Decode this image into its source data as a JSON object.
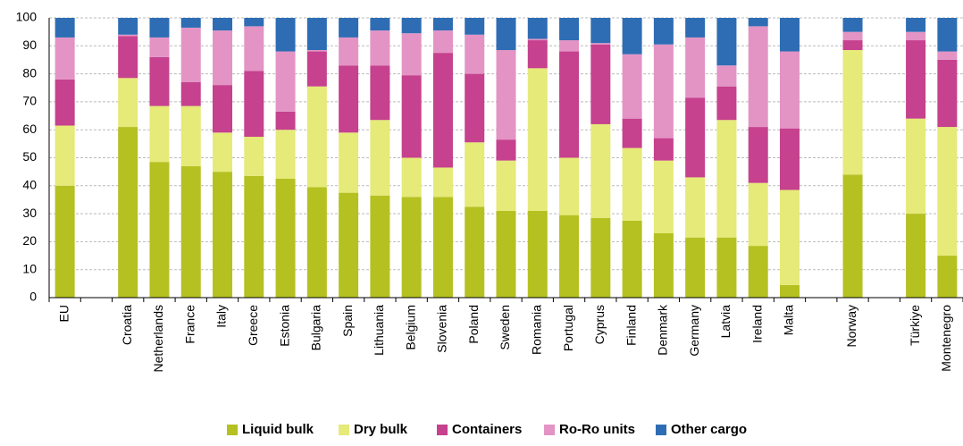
{
  "chart_data": {
    "type": "stacked_bar",
    "categories": [
      "EU",
      null,
      "Croatia",
      "Netherlands",
      "France",
      "Italy",
      "Greece",
      "Estonia",
      "Bulgaria",
      "Spain",
      "Lithuania",
      "Belgium",
      "Slovenia",
      "Poland",
      "Sweden",
      "Romania",
      "Portugal",
      "Cyprus",
      "Finland",
      "Denmark",
      "Germany",
      "Latvia",
      "Ireland",
      "Malta",
      null,
      "Norway",
      null,
      "Türkiye",
      "Montenegro"
    ],
    "series": [
      {
        "name": "Liquid bulk",
        "color": "#b5c121",
        "values": [
          40,
          null,
          61,
          48.5,
          47,
          45,
          43.5,
          42.5,
          39.5,
          37.5,
          36.5,
          36,
          36,
          32.5,
          31,
          31,
          29.5,
          28.5,
          27.5,
          23,
          21.5,
          21.5,
          18.5,
          4.5,
          null,
          44,
          null,
          30,
          15
        ]
      },
      {
        "name": "Dry bulk",
        "color": "#e5ea78",
        "values": [
          21.5,
          null,
          17.5,
          20,
          21.5,
          14,
          14,
          17.5,
          36,
          21.5,
          27,
          14,
          10.5,
          23,
          18,
          51,
          20.5,
          33.5,
          26,
          26,
          21.5,
          42,
          22.5,
          34,
          null,
          44.5,
          null,
          34,
          46
        ]
      },
      {
        "name": "Containers",
        "color": "#c6418e",
        "values": [
          16.5,
          null,
          15,
          17.5,
          8.5,
          17,
          23.5,
          6.5,
          12.5,
          24,
          19.5,
          29.5,
          41,
          24.5,
          7.5,
          10,
          38,
          28.5,
          10.5,
          8,
          28.5,
          12,
          20,
          22,
          null,
          3.5,
          null,
          28,
          24
        ]
      },
      {
        "name": "Ro-Ro units",
        "color": "#e394c5",
        "values": [
          15,
          null,
          0.5,
          7,
          19.5,
          19.5,
          16,
          21.5,
          0.5,
          10,
          12.5,
          15,
          8,
          14,
          32,
          0.5,
          4,
          0.5,
          23,
          33.5,
          21.5,
          7.5,
          36,
          27.5,
          null,
          3,
          null,
          3,
          3
        ]
      },
      {
        "name": "Other cargo",
        "color": "#2e6db4",
        "values": [
          7,
          null,
          6,
          7,
          3.5,
          4.5,
          3,
          12,
          11.5,
          7,
          4.5,
          5.5,
          4.5,
          6,
          11.5,
          7.5,
          8,
          9,
          13,
          9.5,
          7,
          17,
          3,
          12,
          null,
          5,
          null,
          5,
          12
        ]
      }
    ],
    "ylim": [
      0,
      100
    ],
    "yticks": [
      0,
      10,
      20,
      30,
      40,
      50,
      60,
      70,
      80,
      90,
      100
    ],
    "grid": true,
    "legend": "bottom"
  }
}
